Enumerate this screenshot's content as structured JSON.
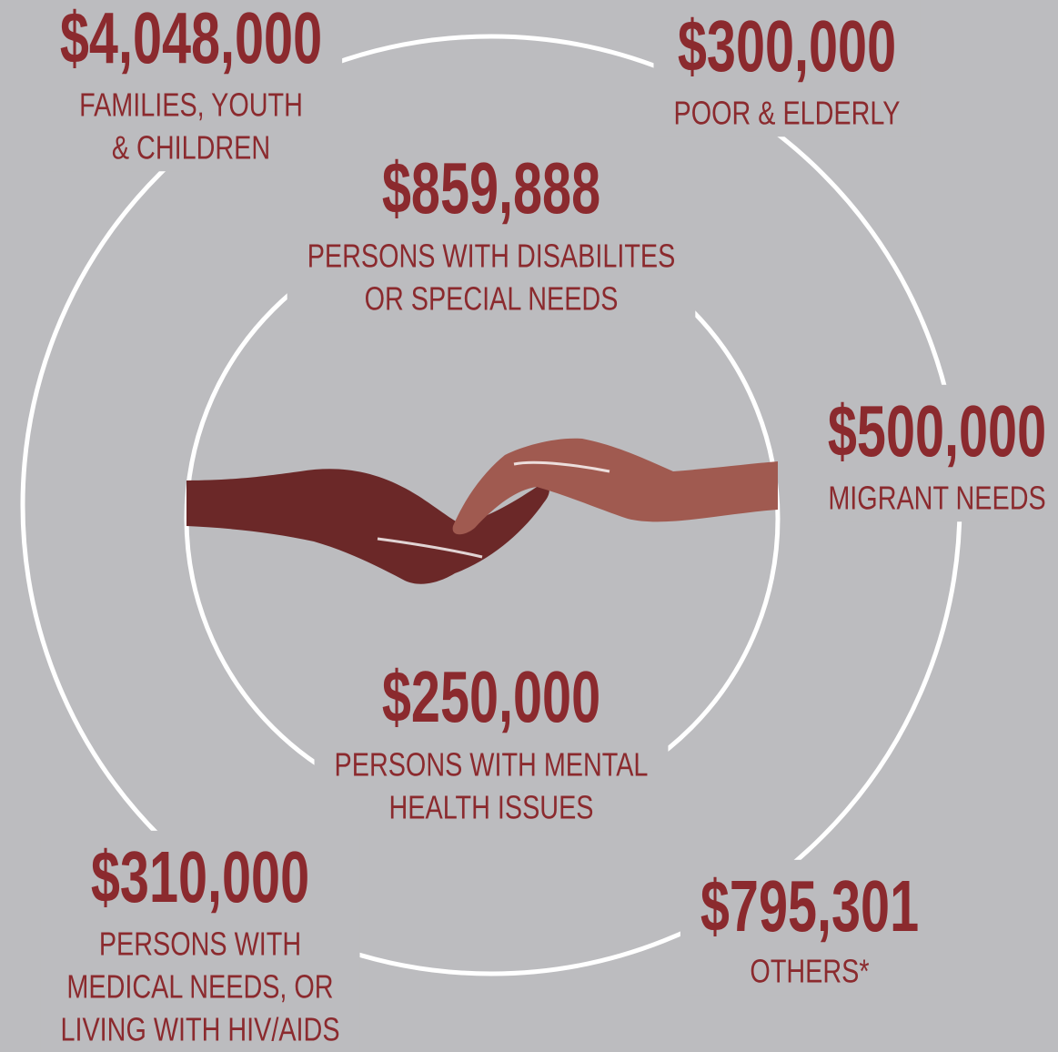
{
  "items": [
    {
      "amount": "$4,048,000",
      "lines": [
        "FAMILIES, YOUTH",
        "& CHILDREN"
      ]
    },
    {
      "amount": "$300,000",
      "lines": [
        "POOR & ELDERLY"
      ]
    },
    {
      "amount": "$859,888",
      "lines": [
        "PERSONS WITH DISABILITES",
        "OR SPECIAL NEEDS"
      ]
    },
    {
      "amount": "$500,000",
      "lines": [
        "MIGRANT NEEDS"
      ]
    },
    {
      "amount": "$250,000",
      "lines": [
        "PERSONS WITH MENTAL",
        "HEALTH ISSUES"
      ]
    },
    {
      "amount": "$310,000",
      "lines": [
        "PERSONS WITH",
        "MEDICAL NEEDS, OR",
        "LIVING WITH HIV/AIDS"
      ]
    },
    {
      "amount": "$795,301",
      "lines": [
        "OTHERS*"
      ]
    }
  ]
}
